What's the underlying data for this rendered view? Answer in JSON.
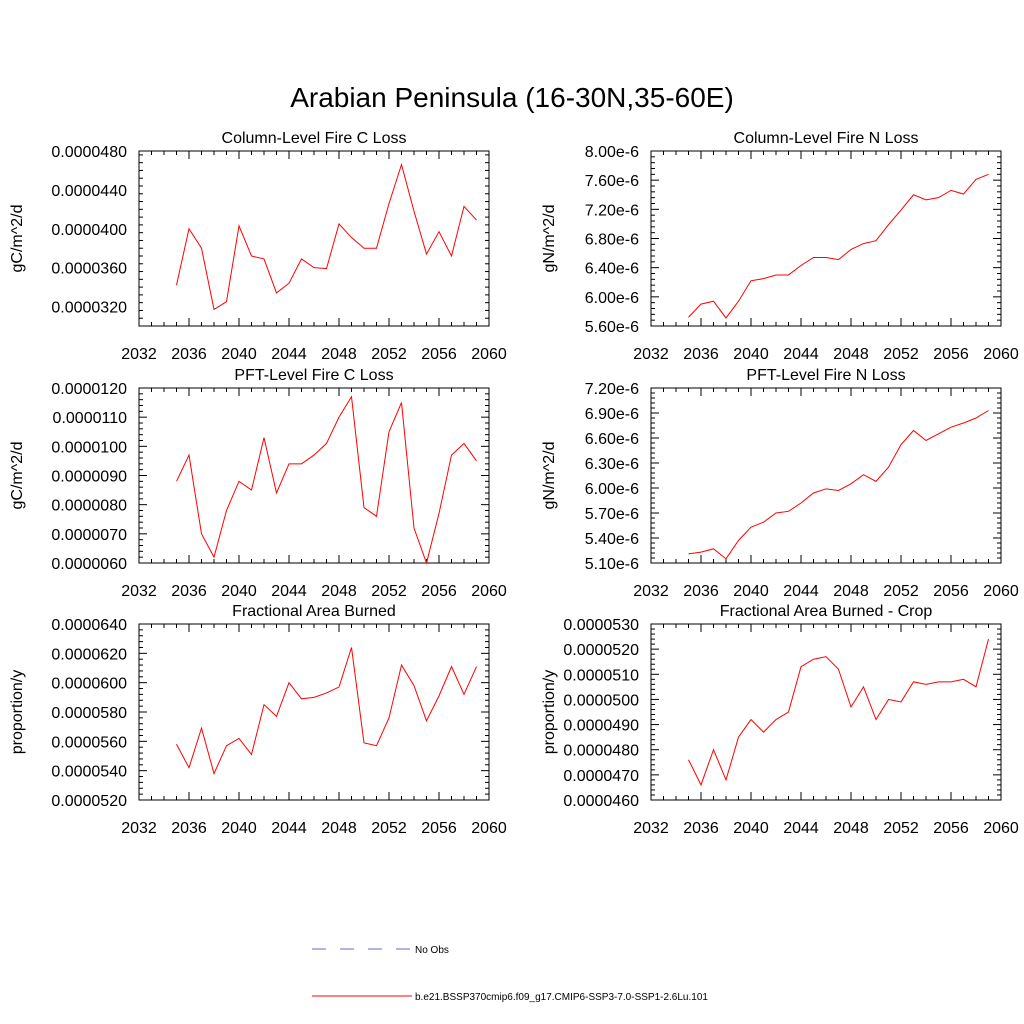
{
  "figure": {
    "title": "Arabian Peninsula (16-30N,35-60E)"
  },
  "colors": {
    "series": "#ff0000",
    "obs": "#6a6ac8",
    "axis": "#000000"
  },
  "legend": {
    "placement": "bottom-center",
    "entries": [
      {
        "label": "No Obs",
        "style": "dashed",
        "color": "#6a6ac8"
      },
      {
        "label": "b.e21.BSSP370cmip6.f09_g17.CMIP6-SSP3-7.0-SSP1-2.6Lu.101",
        "style": "solid",
        "color": "#ff0000"
      }
    ]
  },
  "chart_data": [
    {
      "type": "line",
      "title": "Column-Level Fire C Loss",
      "ylabel": "gC/m^2/d",
      "xlabel": "",
      "xlim": [
        2032,
        2060
      ],
      "xticks": [
        2032,
        2036,
        2040,
        2044,
        2048,
        2052,
        2056,
        2060
      ],
      "xtick_labels": [
        "2032",
        "2036",
        "2040",
        "2044",
        "2048",
        "2052",
        "2056",
        "2060"
      ],
      "ylim": [
        3e-05,
        4.8e-05
      ],
      "yticks": [
        3.2e-05,
        3.6e-05,
        4e-05,
        4.4e-05,
        4.8e-05
      ],
      "ytick_labels": [
        "0.0000320",
        "0.0000360",
        "0.0000400",
        "0.0000440",
        "0.0000480"
      ],
      "x": [
        2035,
        2036,
        2037,
        2038,
        2039,
        2040,
        2041,
        2042,
        2043,
        2044,
        2045,
        2046,
        2047,
        2048,
        2049,
        2050,
        2051,
        2052,
        2053,
        2054,
        2055,
        2056,
        2057,
        2058,
        2059
      ],
      "series": [
        {
          "values": [
            3.42e-05,
            4e-05,
            3.8e-05,
            3.17e-05,
            3.25e-05,
            4.03e-05,
            3.72e-05,
            3.69e-05,
            3.34e-05,
            3.44e-05,
            3.69e-05,
            3.6e-05,
            3.59e-05,
            4.05e-05,
            3.91e-05,
            3.8e-05,
            3.8e-05,
            4.26e-05,
            4.66e-05,
            4.18e-05,
            3.74e-05,
            3.97e-05,
            3.72e-05,
            4.23e-05,
            4.09e-05
          ]
        }
      ]
    },
    {
      "type": "line",
      "title": "Column-Level Fire N Loss",
      "ylabel": "gN/m^2/d",
      "xlabel": "",
      "xlim": [
        2032,
        2060
      ],
      "xticks": [
        2032,
        2036,
        2040,
        2044,
        2048,
        2052,
        2056,
        2060
      ],
      "xtick_labels": [
        "2032",
        "2036",
        "2040",
        "2044",
        "2048",
        "2052",
        "2056",
        "2060"
      ],
      "ylim": [
        5.6e-06,
        8e-06
      ],
      "yticks": [
        5.6e-06,
        6e-06,
        6.4e-06,
        6.8e-06,
        7.2e-06,
        7.6e-06,
        8e-06
      ],
      "ytick_labels": [
        "5.60e-6",
        "6.00e-6",
        "6.40e-6",
        "6.80e-6",
        "7.20e-6",
        "7.60e-6",
        "8.00e-6"
      ],
      "x": [
        2035,
        2036,
        2037,
        2038,
        2039,
        2040,
        2041,
        2042,
        2043,
        2044,
        2045,
        2046,
        2047,
        2048,
        2049,
        2050,
        2051,
        2052,
        2053,
        2054,
        2055,
        2056,
        2057,
        2058,
        2059
      ],
      "series": [
        {
          "values": [
            5.72e-06,
            5.9e-06,
            5.94e-06,
            5.71e-06,
            5.94e-06,
            6.22e-06,
            6.25e-06,
            6.3e-06,
            6.3e-06,
            6.43e-06,
            6.54e-06,
            6.54e-06,
            6.51e-06,
            6.65e-06,
            6.73e-06,
            6.77e-06,
            6.99e-06,
            7.19e-06,
            7.4e-06,
            7.33e-06,
            7.36e-06,
            7.46e-06,
            7.41e-06,
            7.61e-06,
            7.68e-06
          ]
        }
      ]
    },
    {
      "type": "line",
      "title": "PFT-Level Fire C Loss",
      "ylabel": "gC/m^2/d",
      "xlabel": "",
      "xlim": [
        2032,
        2060
      ],
      "xticks": [
        2032,
        2036,
        2040,
        2044,
        2048,
        2052,
        2056,
        2060
      ],
      "xtick_labels": [
        "2032",
        "2036",
        "2040",
        "2044",
        "2048",
        "2052",
        "2056",
        "2060"
      ],
      "ylim": [
        6e-06,
        1.2e-05
      ],
      "yticks": [
        6e-06,
        7e-06,
        8e-06,
        9e-06,
        1e-05,
        1.1e-05,
        1.2e-05
      ],
      "ytick_labels": [
        "0.0000060",
        "0.0000070",
        "0.0000080",
        "0.0000090",
        "0.0000100",
        "0.0000110",
        "0.0000120"
      ],
      "x": [
        2035,
        2036,
        2037,
        2038,
        2039,
        2040,
        2041,
        2042,
        2043,
        2044,
        2045,
        2046,
        2047,
        2048,
        2049,
        2050,
        2051,
        2052,
        2053,
        2054,
        2055,
        2056,
        2057,
        2058,
        2059
      ],
      "series": [
        {
          "values": [
            8.8e-06,
            9.7e-06,
            7e-06,
            6.2e-06,
            7.8e-06,
            8.8e-06,
            8.5e-06,
            1.03e-05,
            8.4e-06,
            9.4e-06,
            9.4e-06,
            9.7e-06,
            1.01e-05,
            1.1e-05,
            1.17e-05,
            7.9e-06,
            7.6e-06,
            1.05e-05,
            1.15e-05,
            7.2e-06,
            6e-06,
            7.7e-06,
            9.7e-06,
            1.01e-05,
            9.5e-06
          ]
        }
      ]
    },
    {
      "type": "line",
      "title": "PFT-Level Fire N Loss",
      "ylabel": "gN/m^2/d",
      "xlabel": "",
      "xlim": [
        2032,
        2060
      ],
      "xticks": [
        2032,
        2036,
        2040,
        2044,
        2048,
        2052,
        2056,
        2060
      ],
      "xtick_labels": [
        "2032",
        "2036",
        "2040",
        "2044",
        "2048",
        "2052",
        "2056",
        "2060"
      ],
      "ylim": [
        5.1e-06,
        7.2e-06
      ],
      "yticks": [
        5.1e-06,
        5.4e-06,
        5.7e-06,
        6e-06,
        6.3e-06,
        6.6e-06,
        6.9e-06,
        7.2e-06
      ],
      "ytick_labels": [
        "5.10e-6",
        "5.40e-6",
        "5.70e-6",
        "6.00e-6",
        "6.30e-6",
        "6.60e-6",
        "6.90e-6",
        "7.20e-6"
      ],
      "x": [
        2035,
        2036,
        2037,
        2038,
        2039,
        2040,
        2041,
        2042,
        2043,
        2044,
        2045,
        2046,
        2047,
        2048,
        2049,
        2050,
        2051,
        2052,
        2053,
        2054,
        2055,
        2056,
        2057,
        2058,
        2059
      ],
      "series": [
        {
          "values": [
            5.21e-06,
            5.23e-06,
            5.27e-06,
            5.15e-06,
            5.37e-06,
            5.53e-06,
            5.59e-06,
            5.7e-06,
            5.72e-06,
            5.82e-06,
            5.94e-06,
            5.99e-06,
            5.97e-06,
            6.05e-06,
            6.16e-06,
            6.08e-06,
            6.25e-06,
            6.52e-06,
            6.69e-06,
            6.57e-06,
            6.65e-06,
            6.73e-06,
            6.78e-06,
            6.84e-06,
            6.93e-06
          ]
        }
      ]
    },
    {
      "type": "line",
      "title": "Fractional Area Burned",
      "ylabel": "proportion/y",
      "xlabel": "",
      "xlim": [
        2032,
        2060
      ],
      "xticks": [
        2032,
        2036,
        2040,
        2044,
        2048,
        2052,
        2056,
        2060
      ],
      "xtick_labels": [
        "2032",
        "2036",
        "2040",
        "2044",
        "2048",
        "2052",
        "2056",
        "2060"
      ],
      "ylim": [
        5.2e-05,
        6.4e-05
      ],
      "yticks": [
        5.2e-05,
        5.4e-05,
        5.6e-05,
        5.8e-05,
        6e-05,
        6.2e-05,
        6.4e-05
      ],
      "ytick_labels": [
        "0.0000520",
        "0.0000540",
        "0.0000560",
        "0.0000580",
        "0.0000600",
        "0.0000620",
        "0.0000640"
      ],
      "x": [
        2035,
        2036,
        2037,
        2038,
        2039,
        2040,
        2041,
        2042,
        2043,
        2044,
        2045,
        2046,
        2047,
        2048,
        2049,
        2050,
        2051,
        2052,
        2053,
        2054,
        2055,
        2056,
        2057,
        2058,
        2059
      ],
      "series": [
        {
          "values": [
            5.58e-05,
            5.42e-05,
            5.69e-05,
            5.38e-05,
            5.57e-05,
            5.62e-05,
            5.51e-05,
            5.85e-05,
            5.77e-05,
            6e-05,
            5.89e-05,
            5.9e-05,
            5.93e-05,
            5.97e-05,
            6.24e-05,
            5.59e-05,
            5.57e-05,
            5.76e-05,
            6.12e-05,
            5.98e-05,
            5.74e-05,
            5.91e-05,
            6.11e-05,
            5.92e-05,
            6.11e-05
          ]
        }
      ]
    },
    {
      "type": "line",
      "title": "Fractional Area Burned - Crop",
      "ylabel": "proportion/y",
      "xlabel": "",
      "xlim": [
        2032,
        2060
      ],
      "xticks": [
        2032,
        2036,
        2040,
        2044,
        2048,
        2052,
        2056,
        2060
      ],
      "xtick_labels": [
        "2032",
        "2036",
        "2040",
        "2044",
        "2048",
        "2052",
        "2056",
        "2060"
      ],
      "ylim": [
        4.6e-05,
        5.3e-05
      ],
      "yticks": [
        4.6e-05,
        4.7e-05,
        4.8e-05,
        4.9e-05,
        5e-05,
        5.1e-05,
        5.2e-05,
        5.3e-05
      ],
      "ytick_labels": [
        "0.0000460",
        "0.0000470",
        "0.0000480",
        "0.0000490",
        "0.0000500",
        "0.0000510",
        "0.0000520",
        "0.0000530"
      ],
      "x": [
        2035,
        2036,
        2037,
        2038,
        2039,
        2040,
        2041,
        2042,
        2043,
        2044,
        2045,
        2046,
        2047,
        2048,
        2049,
        2050,
        2051,
        2052,
        2053,
        2054,
        2055,
        2056,
        2057,
        2058,
        2059
      ],
      "series": [
        {
          "values": [
            4.76e-05,
            4.66e-05,
            4.8e-05,
            4.68e-05,
            4.85e-05,
            4.92e-05,
            4.87e-05,
            4.92e-05,
            4.95e-05,
            5.13e-05,
            5.16e-05,
            5.17e-05,
            5.12e-05,
            4.97e-05,
            5.05e-05,
            4.92e-05,
            5e-05,
            4.99e-05,
            5.07e-05,
            5.06e-05,
            5.07e-05,
            5.07e-05,
            5.08e-05,
            5.05e-05,
            5.24e-05
          ]
        }
      ]
    }
  ]
}
